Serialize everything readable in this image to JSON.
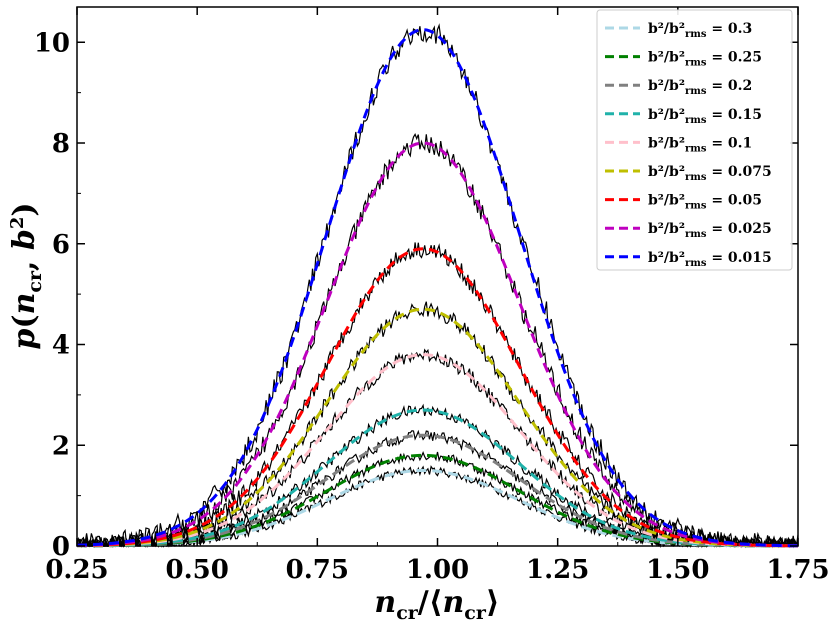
{
  "chart_data": {
    "type": "line",
    "title": "",
    "xlabel": "n_cr/⟨n_cr⟩",
    "ylabel": "p(n_cr, b²)",
    "xlim": [
      0.25,
      1.75
    ],
    "ylim": [
      0,
      10.7
    ],
    "xticks": [
      "0.25",
      "0.50",
      "0.75",
      "1.00",
      "1.25",
      "1.50",
      "1.75"
    ],
    "yticks": [
      "0",
      "2",
      "4",
      "6",
      "8",
      "10"
    ],
    "legend_position": "top-right",
    "grid": false,
    "curve_model": "gaussian: peak * exp(-(x - 0.97)^2 / (2 * 0.20^2))",
    "series": [
      {
        "name": "b²/b²_rms = 0.3",
        "legend_main": "b²/b²",
        "legend_sub": "rms",
        "legend_value": " = 0.3",
        "color": "#add8e6",
        "peak": 1.5
      },
      {
        "name": "b²/b²_rms = 0.25",
        "legend_main": "b²/b²",
        "legend_sub": "rms",
        "legend_value": " = 0.25",
        "color": "#008000",
        "peak": 1.8
      },
      {
        "name": "b²/b²_rms = 0.2",
        "legend_main": "b²/b²",
        "legend_sub": "rms",
        "legend_value": " = 0.2",
        "color": "#808080",
        "peak": 2.2
      },
      {
        "name": "b²/b²_rms = 0.15",
        "legend_main": "b²/b²",
        "legend_sub": "rms",
        "legend_value": " = 0.15",
        "color": "#20b2aa",
        "peak": 2.7
      },
      {
        "name": "b²/b²_rms = 0.1",
        "legend_main": "b²/b²",
        "legend_sub": "rms",
        "legend_value": " = 0.1",
        "color": "#ffc0cb",
        "peak": 3.8
      },
      {
        "name": "b²/b²_rms = 0.075",
        "legend_main": "b²/b²",
        "legend_sub": "rms",
        "legend_value": " = 0.075",
        "color": "#bfbf00",
        "peak": 4.7
      },
      {
        "name": "b²/b²_rms = 0.05",
        "legend_main": "b²/b²",
        "legend_sub": "rms",
        "legend_value": " = 0.05",
        "color": "#ff0000",
        "peak": 5.9
      },
      {
        "name": "b²/b²_rms = 0.025",
        "legend_main": "b²/b²",
        "legend_sub": "rms",
        "legend_value": " = 0.025",
        "color": "#bf00bf",
        "peak": 8.0
      },
      {
        "name": "b²/b²_rms = 0.015",
        "legend_main": "b²/b²",
        "legend_sub": "rms",
        "legend_value": " = 0.015",
        "color": "#0000ff",
        "peak": 10.25
      }
    ]
  }
}
